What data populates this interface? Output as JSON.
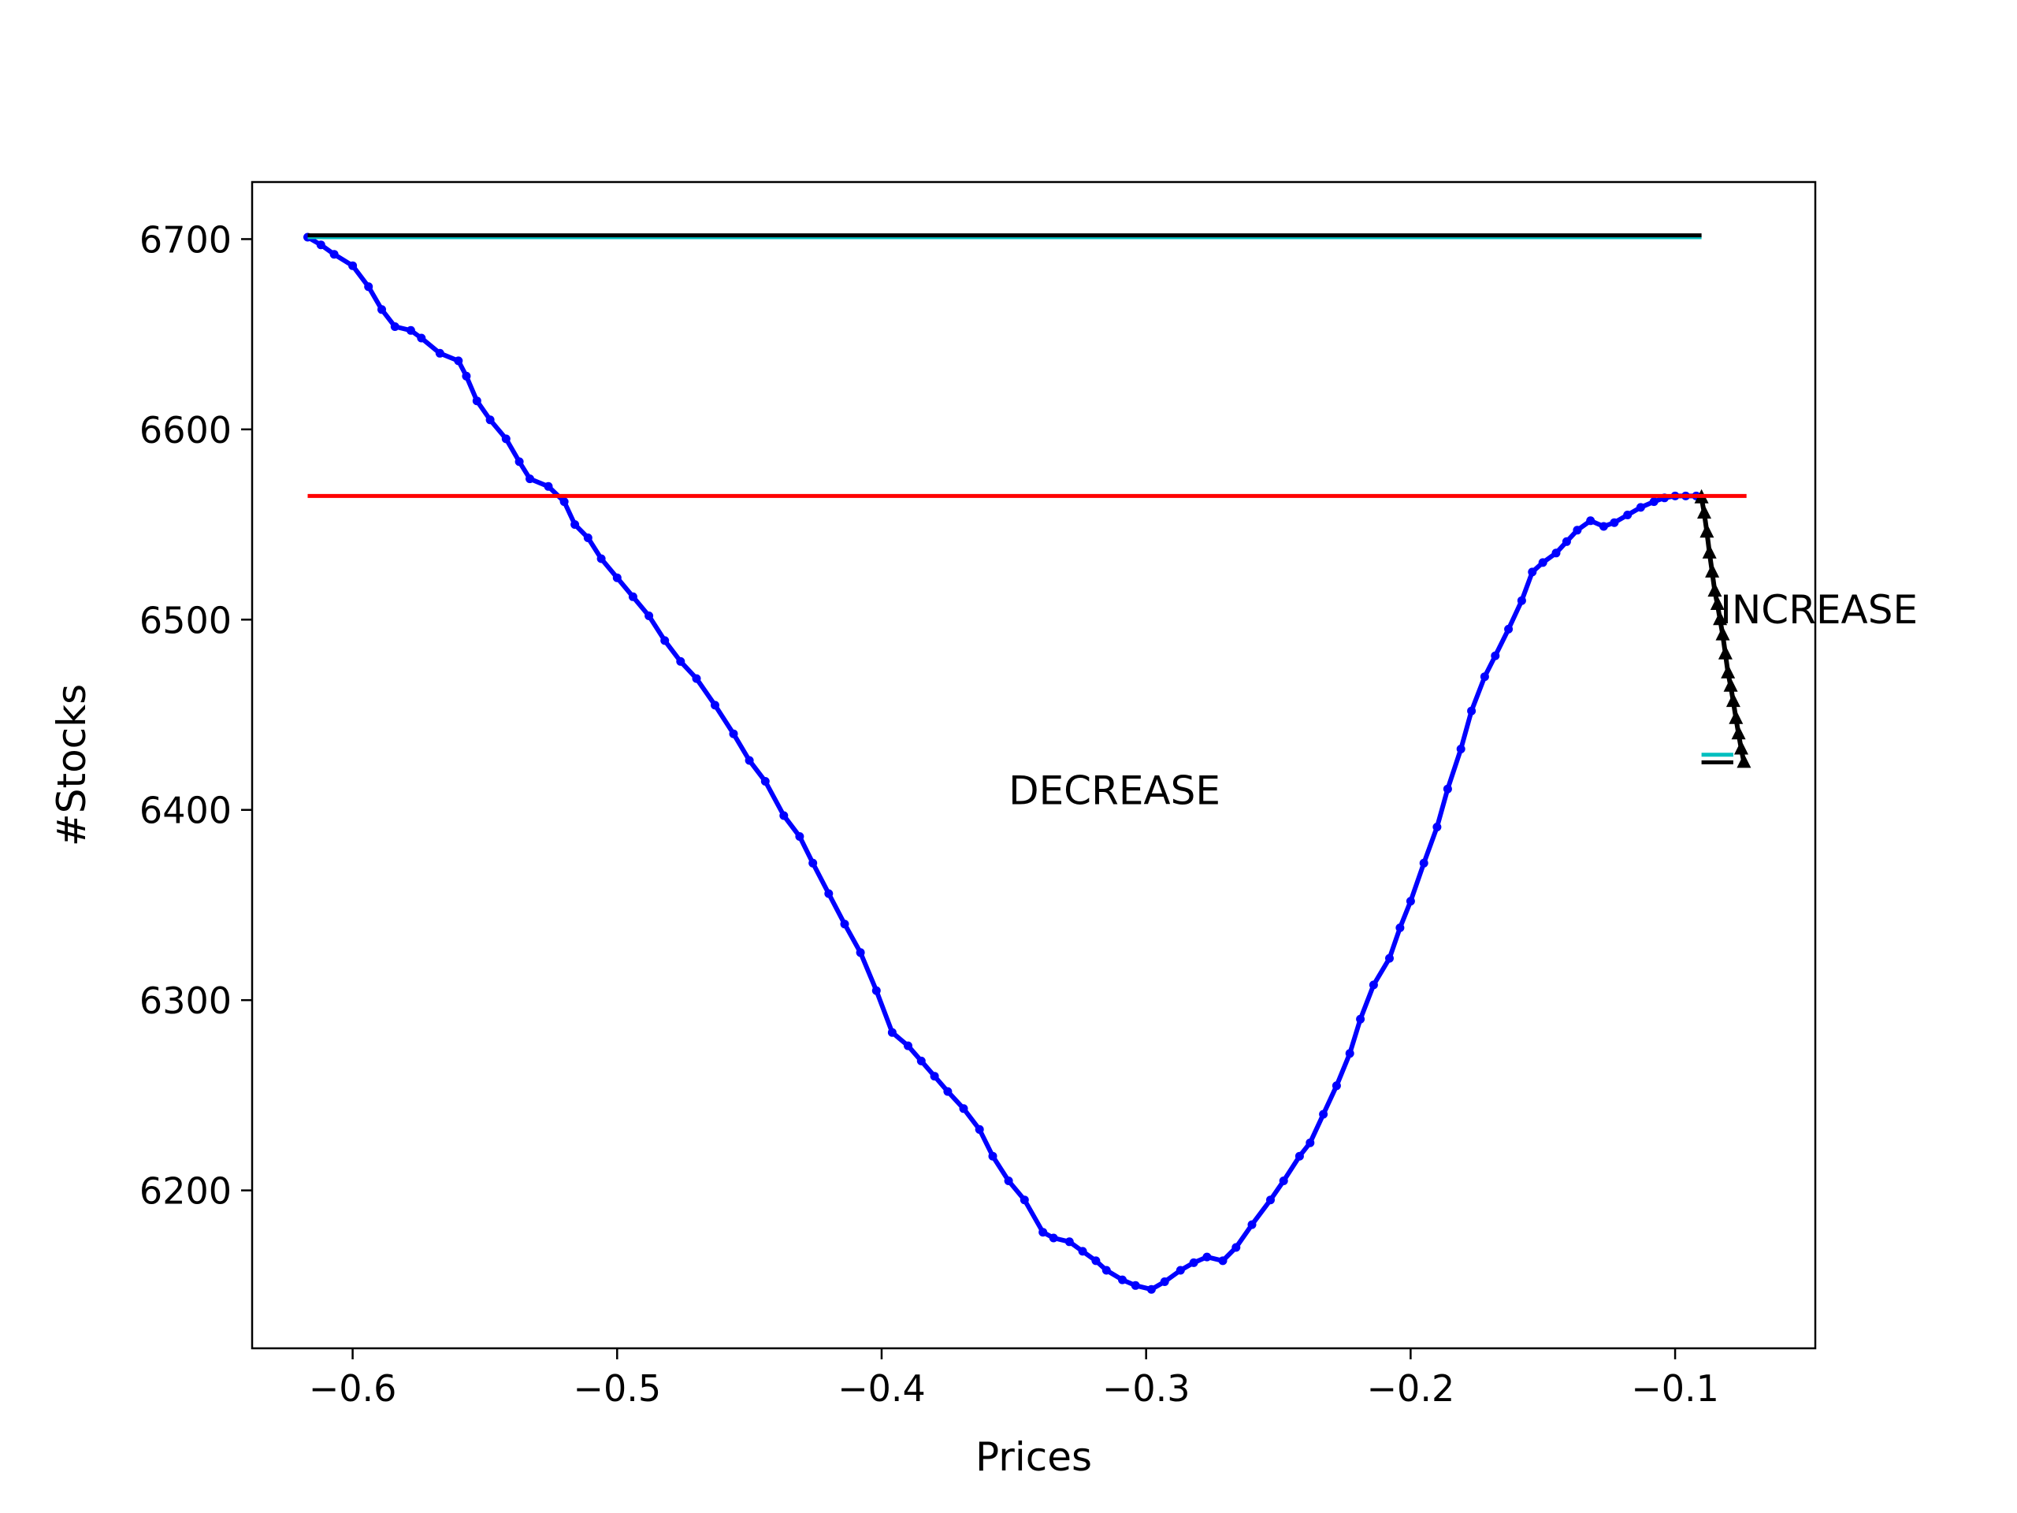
{
  "chart_data": {
    "type": "line",
    "xlabel": "Prices",
    "ylabel": "#Stocks",
    "xlim": [
      -0.638,
      -0.047
    ],
    "ylim": [
      6117,
      6730
    ],
    "xticks": [
      -0.6,
      -0.5,
      -0.4,
      -0.3,
      -0.2,
      -0.1
    ],
    "xtick_labels": [
      "−0.6",
      "−0.5",
      "−0.4",
      "−0.3",
      "−0.2",
      "−0.1"
    ],
    "yticks": [
      6200,
      6300,
      6400,
      6500,
      6600,
      6700
    ],
    "ytick_labels": [
      "6200",
      "6300",
      "6400",
      "6500",
      "6600",
      "6700"
    ],
    "grid": false,
    "annotations": [
      {
        "text": "DECREASE",
        "x": -0.352,
        "y": 6403
      },
      {
        "text": "INCREASE",
        "x": -0.083,
        "y": 6498
      }
    ],
    "series": [
      {
        "color": "#0000ff",
        "marker": "circle",
        "x": [
          -0.617,
          -0.612,
          -0.607,
          -0.6,
          -0.594,
          -0.589,
          -0.584,
          -0.578,
          -0.574,
          -0.567,
          -0.56,
          -0.557,
          -0.553,
          -0.548,
          -0.542,
          -0.537,
          -0.533,
          -0.526,
          -0.52,
          -0.516,
          -0.511,
          -0.506,
          -0.5,
          -0.494,
          -0.488,
          -0.482,
          -0.476,
          -0.47,
          -0.463,
          -0.456,
          -0.45,
          -0.444,
          -0.437,
          -0.431,
          -0.426,
          -0.42,
          -0.414,
          -0.408,
          -0.402,
          -0.396,
          -0.39,
          -0.385,
          -0.38,
          -0.375,
          -0.369,
          -0.363,
          -0.358,
          -0.352,
          -0.346,
          -0.339,
          -0.335,
          -0.329,
          -0.324,
          -0.319,
          -0.315,
          -0.309,
          -0.304,
          -0.298,
          -0.293,
          -0.287,
          -0.282,
          -0.277,
          -0.271,
          -0.266,
          -0.26,
          -0.253,
          -0.248,
          -0.242,
          -0.238,
          -0.233,
          -0.228,
          -0.223,
          -0.219,
          -0.214,
          -0.208,
          -0.204,
          -0.2,
          -0.195,
          -0.19,
          -0.186,
          -0.181,
          -0.177,
          -0.172,
          -0.168,
          -0.163,
          -0.158,
          -0.154,
          -0.15,
          -0.145,
          -0.141,
          -0.137,
          -0.132,
          -0.127,
          -0.123,
          -0.118,
          -0.113,
          -0.108,
          -0.104,
          -0.1,
          -0.096,
          -0.092,
          -0.09
        ],
        "y": [
          6701,
          6697,
          6692,
          6686,
          6675,
          6663,
          6654,
          6652,
          6648,
          6640,
          6636,
          6628,
          6615,
          6605,
          6595,
          6583,
          6574,
          6570,
          6562,
          6550,
          6543,
          6532,
          6522,
          6512,
          6502,
          6489,
          6478,
          6469,
          6455,
          6440,
          6426,
          6415,
          6397,
          6386,
          6372,
          6356,
          6340,
          6325,
          6305,
          6283,
          6276,
          6268,
          6260,
          6252,
          6243,
          6232,
          6218,
          6205,
          6195,
          6178,
          6175,
          6173,
          6168,
          6163,
          6158,
          6153,
          6150,
          6148,
          6152,
          6158,
          6162,
          6165,
          6163,
          6170,
          6182,
          6195,
          6205,
          6218,
          6225,
          6240,
          6255,
          6272,
          6290,
          6308,
          6322,
          6338,
          6352,
          6372,
          6391,
          6411,
          6432,
          6452,
          6470,
          6481,
          6495,
          6510,
          6525,
          6530,
          6535,
          6541,
          6547,
          6552,
          6549,
          6551,
          6555,
          6559,
          6562,
          6564,
          6565,
          6565,
          6565,
          6564
        ]
      },
      {
        "color": "#000000",
        "marker": "triangle",
        "x": [
          -0.09,
          -0.089,
          -0.088,
          -0.087,
          -0.086,
          -0.085,
          -0.084,
          -0.083,
          -0.082,
          -0.081,
          -0.08,
          -0.079,
          -0.078,
          -0.077,
          -0.076,
          -0.075,
          -0.074
        ],
        "y": [
          6564,
          6556,
          6546,
          6535,
          6525,
          6515,
          6508,
          6500,
          6492,
          6482,
          6472,
          6465,
          6457,
          6448,
          6440,
          6432,
          6425
        ]
      },
      {
        "color": "#ff0000",
        "marker": "none",
        "x": [
          -0.617,
          -0.073
        ],
        "y": [
          6565,
          6565
        ]
      },
      {
        "color": "#00bfbf",
        "marker": "none",
        "x": [
          -0.617,
          -0.09
        ],
        "y": [
          6701,
          6701
        ]
      },
      {
        "color": "#000000",
        "marker": "none",
        "x": [
          -0.617,
          -0.09
        ],
        "y": [
          6702,
          6702
        ]
      },
      {
        "color": "#00bfbf",
        "marker": "none",
        "x": [
          -0.09,
          -0.078
        ],
        "y": [
          6429,
          6429
        ]
      },
      {
        "color": "#000000",
        "marker": "none",
        "x": [
          -0.09,
          -0.078
        ],
        "y": [
          6425,
          6425
        ]
      }
    ]
  }
}
